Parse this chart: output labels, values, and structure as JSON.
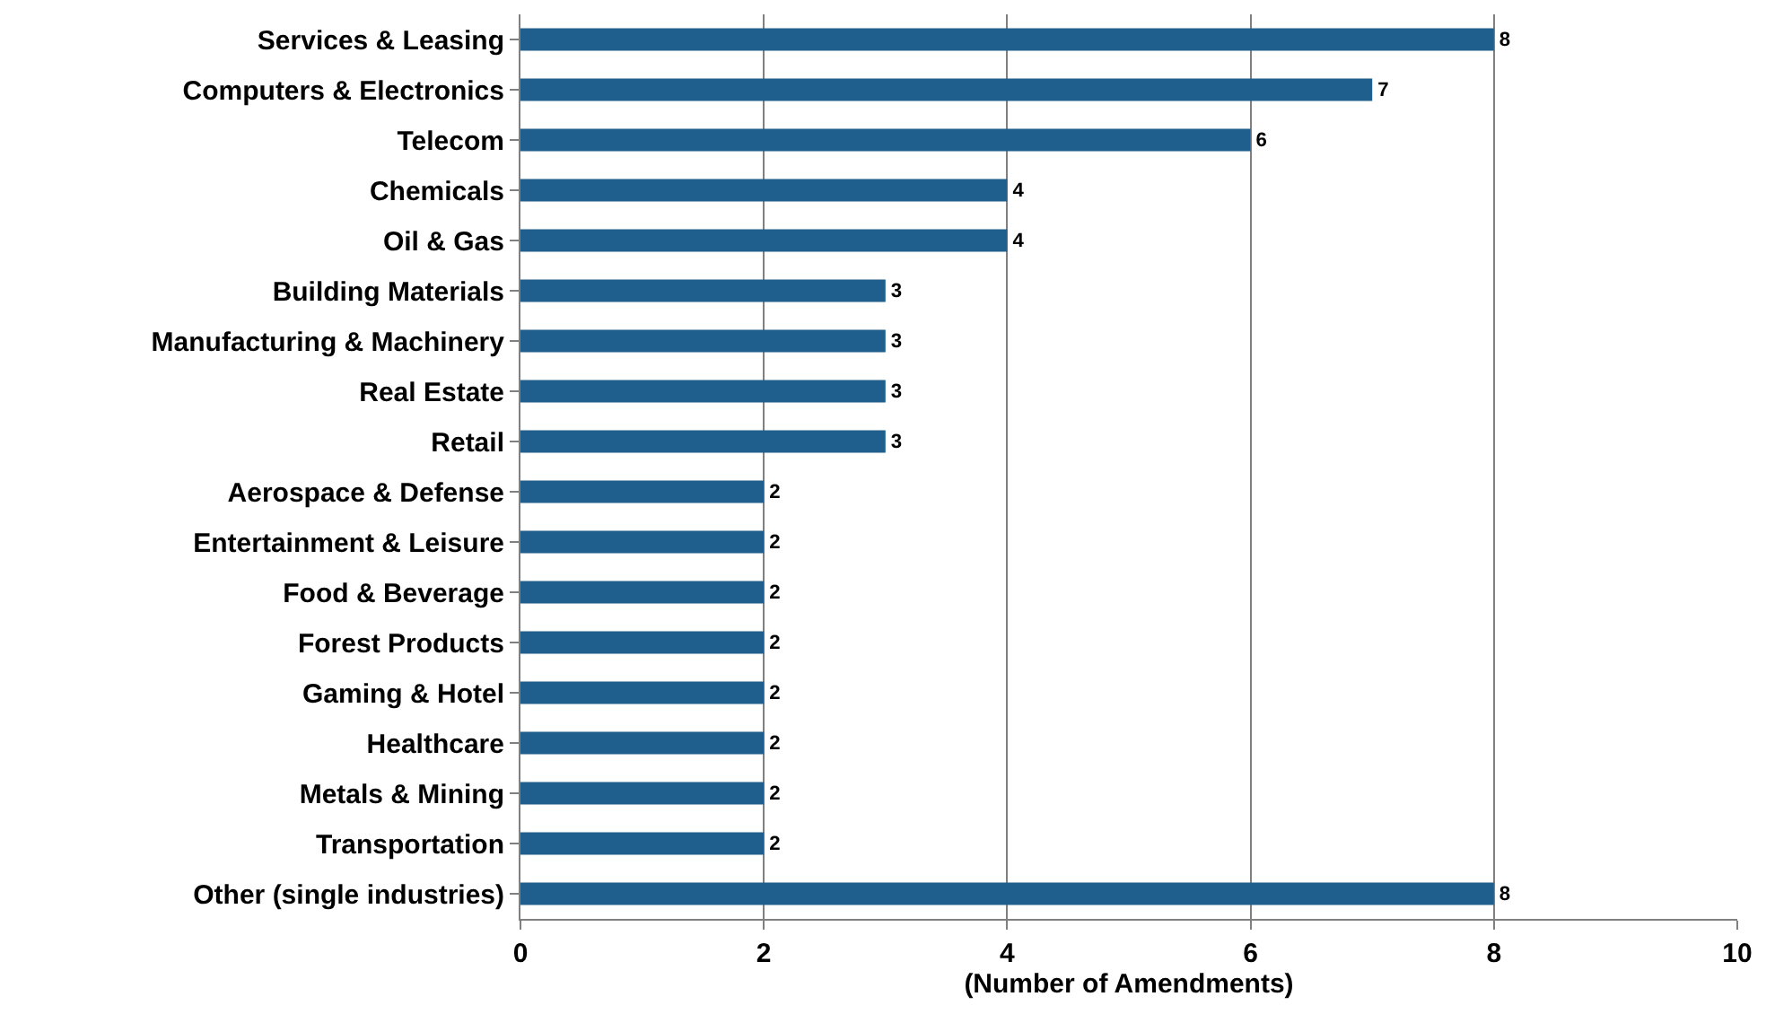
{
  "chart_data": {
    "type": "bar",
    "orientation": "horizontal",
    "xlabel": "(Number of Amendments)",
    "categories": [
      "Services & Leasing",
      "Computers & Electronics",
      "Telecom",
      "Chemicals",
      "Oil & Gas",
      "Building Materials",
      "Manufacturing & Machinery",
      "Real Estate",
      "Retail",
      "Aerospace & Defense",
      "Entertainment & Leisure",
      "Food & Beverage",
      "Forest Products",
      "Gaming & Hotel",
      "Healthcare",
      "Metals & Mining",
      "Transportation",
      "Other (single industries)"
    ],
    "values": [
      8,
      7,
      6,
      4,
      4,
      3,
      3,
      3,
      3,
      2,
      2,
      2,
      2,
      2,
      2,
      2,
      2,
      8
    ],
    "color": "#1f5f8e",
    "xlim": [
      0,
      10
    ],
    "xticks": [
      0,
      2,
      4,
      6,
      8,
      10
    ],
    "grid": "x",
    "data_labels": true,
    "legend": false
  }
}
